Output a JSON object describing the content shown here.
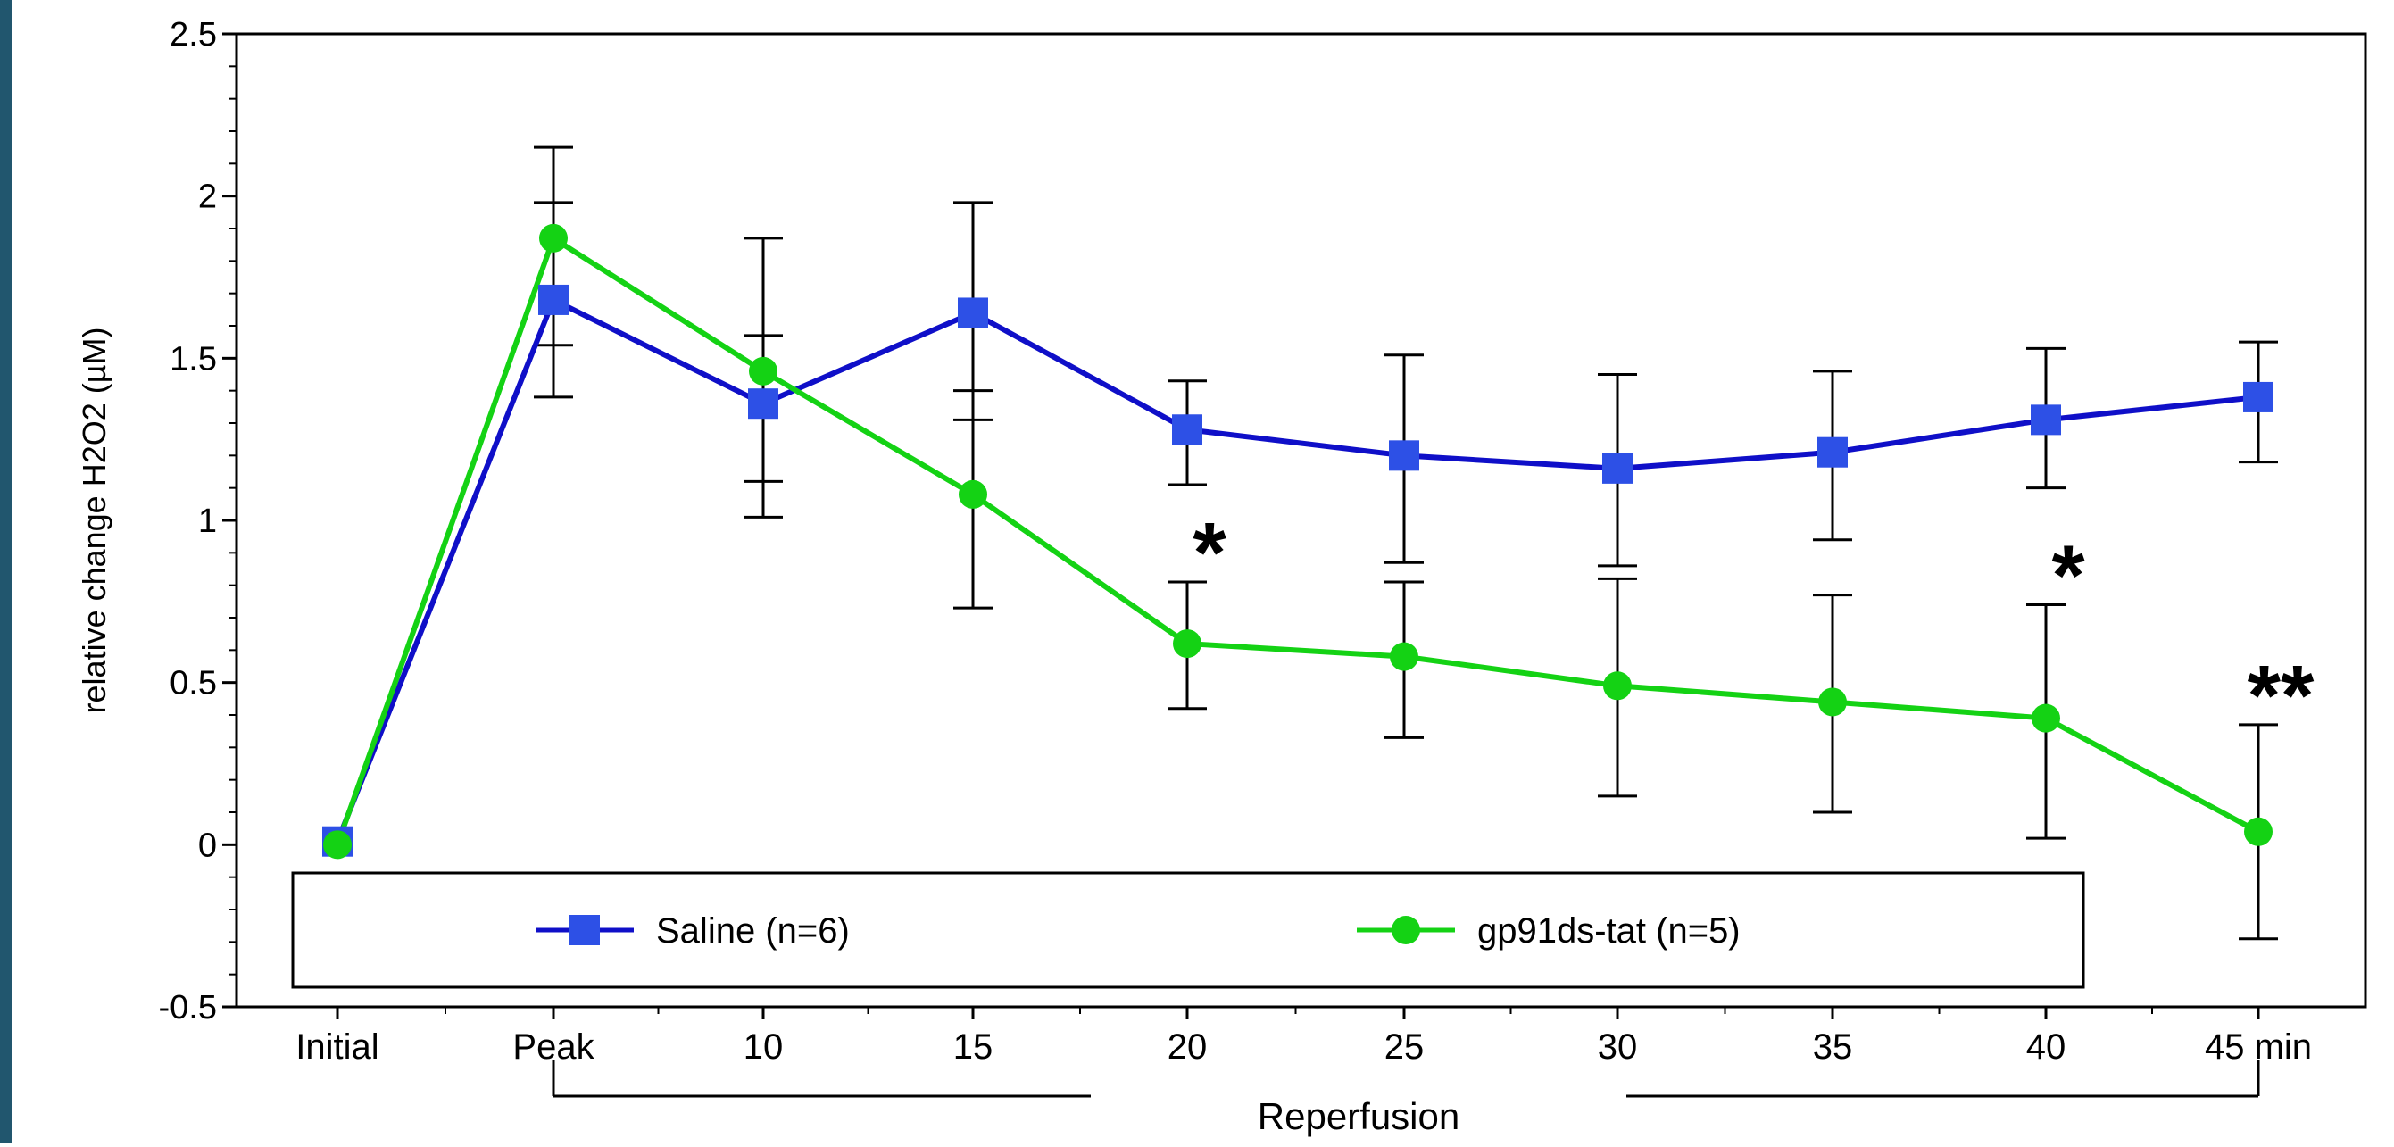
{
  "colors": {
    "side_bar": "#21566e",
    "saline": "#0f0fc8",
    "saline_marker": "#2d50e6",
    "gp91": "#14d214",
    "axis": "#000000"
  },
  "chart_data": {
    "type": "line",
    "categories": [
      "Initial",
      "Peak",
      "10",
      "15",
      "20",
      "25",
      "30",
      "35",
      "40",
      "45 min"
    ],
    "ylabel": "relative change H2O2 (µM)",
    "xlabel": "Reperfusion",
    "ylim": [
      -0.5,
      2.5
    ],
    "yticks": [
      "2.5",
      "2",
      "1.5",
      "1",
      "0.5",
      "0",
      "-0.5"
    ],
    "ytick_values": [
      2.5,
      2,
      1.5,
      1,
      0.5,
      0,
      -0.5
    ],
    "grid": false,
    "legend_position": "bottom-inside",
    "series": [
      {
        "name": "Saline (n=6)",
        "marker": "square",
        "values": [
          0.01,
          1.68,
          1.36,
          1.64,
          1.28,
          1.2,
          1.16,
          1.21,
          1.31,
          1.38
        ],
        "err_low": [
          0.0,
          0.3,
          0.35,
          0.33,
          0.17,
          0.33,
          0.3,
          0.27,
          0.21,
          0.2
        ],
        "err_high": [
          0.0,
          0.3,
          0.51,
          0.34,
          0.15,
          0.31,
          0.29,
          0.25,
          0.22,
          0.17
        ]
      },
      {
        "name": "gp91ds-tat (n=5)",
        "marker": "circle",
        "values": [
          0.0,
          1.87,
          1.46,
          1.08,
          0.62,
          0.58,
          0.49,
          0.44,
          0.39,
          0.04
        ],
        "err_low": [
          0.0,
          0.33,
          0.34,
          0.35,
          0.2,
          0.25,
          0.34,
          0.34,
          0.37,
          0.33
        ],
        "err_high": [
          0.0,
          0.28,
          0.11,
          0.32,
          0.19,
          0.23,
          0.33,
          0.33,
          0.35,
          0.33
        ]
      }
    ],
    "annotations": [
      {
        "text": "*",
        "category": "20",
        "y": 0.92
      },
      {
        "text": "*",
        "category": "40",
        "y": 0.85
      },
      {
        "text": "**",
        "category": "45 min",
        "y": 0.48
      }
    ]
  }
}
